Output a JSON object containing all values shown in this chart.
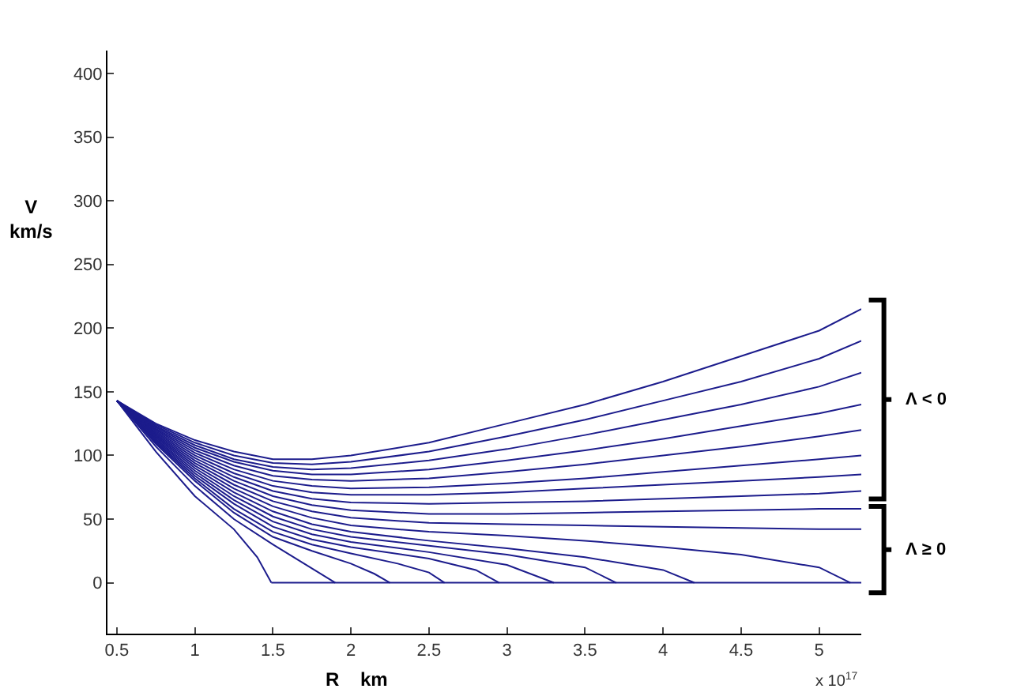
{
  "chart_data": {
    "type": "line",
    "xlabel": "R    km",
    "ylabel": "V\nkm/s",
    "annotations": [
      "x 10$^{17}$",
      "Λ < 0",
      "Λ ≥ 0"
    ],
    "xlim": [
      0.44,
      5.27
    ],
    "xticks": [
      0.5,
      1,
      1.5,
      2,
      2.5,
      3,
      3.5,
      4,
      4.5,
      5
    ],
    "ylim": [
      -40,
      418
    ],
    "yticks": [
      0,
      50,
      100,
      150,
      200,
      250,
      300,
      350,
      400
    ],
    "marker": "none",
    "line_style": "solid",
    "x": [
      0.5,
      0.75,
      1,
      1.25,
      1.5,
      1.75,
      2,
      2.5,
      3,
      3.5,
      4,
      4.5,
      5,
      5.27
    ],
    "series": [
      {
        "color": "#1c1c8c",
        "values": [
          143,
          125,
          112,
          103,
          97,
          97,
          100,
          110,
          125,
          140,
          158,
          178,
          198,
          215
        ]
      },
      {
        "color": "#1c1c8c",
        "values": [
          143,
          124,
          110,
          100,
          94,
          93,
          95,
          103,
          115,
          128,
          143,
          158,
          176,
          190
        ]
      },
      {
        "color": "#1c1c8c",
        "values": [
          143,
          123,
          108,
          97,
          91,
          89,
          90,
          96,
          105,
          116,
          128,
          140,
          154,
          165
        ]
      },
      {
        "color": "#1c1c8c",
        "values": [
          143,
          122,
          106,
          95,
          88,
          85,
          85,
          89,
          96,
          104,
          113,
          123,
          133,
          140
        ]
      },
      {
        "color": "#1c1c8c",
        "values": [
          143,
          121,
          104,
          92,
          84,
          81,
          80,
          82,
          87,
          93,
          100,
          107,
          115,
          120
        ]
      },
      {
        "color": "#1c1c8c",
        "values": [
          143,
          120,
          102,
          89,
          80,
          76,
          74,
          75,
          78,
          82,
          87,
          92,
          97,
          100
        ]
      },
      {
        "color": "#1c1c8c",
        "values": [
          143,
          119,
          100,
          86,
          76,
          71,
          69,
          69,
          71,
          74,
          77,
          80,
          83,
          85
        ]
      },
      {
        "color": "#1c1c8c",
        "values": [
          143,
          118,
          98,
          83,
          72,
          66,
          63,
          62,
          63,
          64,
          66,
          68,
          70,
          72
        ]
      },
      {
        "color": "#1c1c8c",
        "values": [
          143,
          117,
          96,
          80,
          68,
          61,
          57,
          54,
          54,
          55,
          56,
          57,
          58,
          58
        ]
      },
      {
        "color": "#1c1c8c",
        "values": [
          143,
          116,
          94,
          77,
          64,
          56,
          51,
          47,
          46,
          45,
          44,
          43,
          42,
          42
        ]
      },
      {
        "color": "#1c1c8c",
        "x": [
          0.5,
          0.75,
          1,
          1.25,
          1.5,
          1.75,
          2,
          2.5,
          3,
          3.5,
          4,
          4.5,
          5,
          5.2
        ],
        "values": [
          143,
          115,
          92,
          74,
          60,
          51,
          45,
          40,
          37,
          33,
          28,
          22,
          12,
          0
        ]
      },
      {
        "color": "#1c1c8c",
        "x": [
          0.5,
          0.75,
          1,
          1.25,
          1.5,
          1.75,
          2,
          2.5,
          3,
          3.5,
          4,
          4.2
        ],
        "values": [
          143,
          114,
          90,
          71,
          56,
          46,
          40,
          33,
          27,
          20,
          10,
          0
        ]
      },
      {
        "color": "#1c1c8c",
        "x": [
          0.5,
          0.75,
          1,
          1.25,
          1.5,
          1.75,
          2,
          2.5,
          3,
          3.5,
          3.7
        ],
        "values": [
          143,
          113,
          88,
          68,
          52,
          42,
          36,
          29,
          22,
          12,
          0
        ]
      },
      {
        "color": "#1c1c8c",
        "x": [
          0.5,
          0.75,
          1,
          1.25,
          1.5,
          1.75,
          2,
          2.5,
          3,
          3.3
        ],
        "values": [
          143,
          112,
          86,
          65,
          48,
          38,
          32,
          24,
          14,
          0
        ]
      },
      {
        "color": "#1c1c8c",
        "x": [
          0.5,
          0.75,
          1,
          1.25,
          1.5,
          1.75,
          2,
          2.5,
          2.8,
          2.95
        ],
        "values": [
          143,
          111,
          84,
          62,
          44,
          34,
          28,
          19,
          10,
          0
        ]
      },
      {
        "color": "#1c1c8c",
        "x": [
          0.5,
          0.75,
          1,
          1.25,
          1.5,
          1.75,
          2,
          2.3,
          2.5,
          2.6
        ],
        "values": [
          143,
          110,
          82,
          58,
          40,
          30,
          23,
          15,
          8,
          0
        ]
      },
      {
        "color": "#1c1c8c",
        "x": [
          0.5,
          0.75,
          1,
          1.25,
          1.5,
          1.75,
          2,
          2.15,
          2.25
        ],
        "values": [
          143,
          109,
          80,
          55,
          36,
          25,
          15,
          7,
          0
        ]
      },
      {
        "color": "#1c1c8c",
        "x": [
          0.5,
          0.75,
          1,
          1.25,
          1.5,
          1.7,
          1.9
        ],
        "values": [
          143,
          107,
          76,
          50,
          30,
          15,
          0
        ]
      },
      {
        "color": "#1c1c8c",
        "x": [
          0.5,
          0.75,
          1,
          1.25,
          1.4,
          1.49
        ],
        "values": [
          143,
          103,
          68,
          42,
          20,
          0
        ]
      },
      {
        "color": "#1c1c8c",
        "x": [
          1.49,
          5.27
        ],
        "values": [
          0,
          0
        ]
      }
    ]
  }
}
